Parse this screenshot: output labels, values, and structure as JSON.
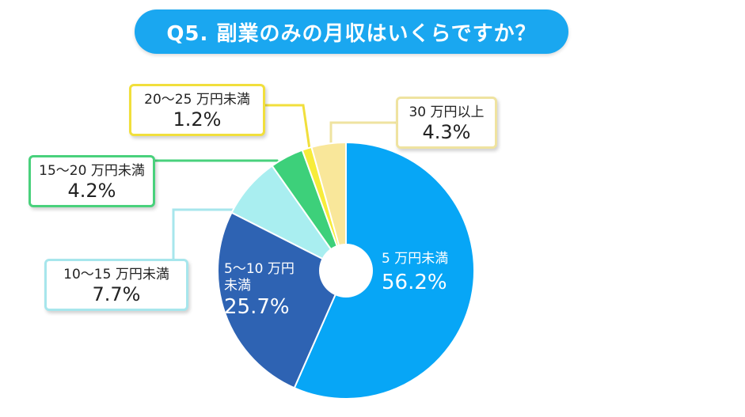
{
  "title": "Q5. 副業のみの月収はいくらですか？",
  "chart_data": {
    "type": "pie",
    "donut": true,
    "start": "top, clockwise",
    "slices": [
      {
        "label": "5 万円未満",
        "value": 56.2,
        "display": "56.2%",
        "color": "#07a6f6"
      },
      {
        "label": "5〜10 万円未満",
        "value": 25.7,
        "display": "25.7%",
        "color": "#2e63b3"
      },
      {
        "label": "10〜15 万円未満",
        "value": 7.7,
        "display": "7.7%",
        "color": "#a9eef0"
      },
      {
        "label": "15〜20 万円未満",
        "value": 4.2,
        "display": "4.2%",
        "color": "#3dd07a"
      },
      {
        "label": "20〜25 万円未満",
        "value": 1.2,
        "display": "1.2%",
        "color": "#f7ec3a"
      },
      {
        "label": "30 万円以上",
        "value": 4.3,
        "display": "4.3%",
        "color": "#f9e79a"
      }
    ],
    "inside_labels": {
      "s0_line1": "5 万円未満",
      "s1_line1": "5〜10 万円",
      "s1_line2": "未満"
    },
    "callout_border_colors": {
      "s2": "#a7e6ec",
      "s3": "#49d17c",
      "s4": "#f1df3c",
      "s5": "#efe3a0"
    }
  }
}
